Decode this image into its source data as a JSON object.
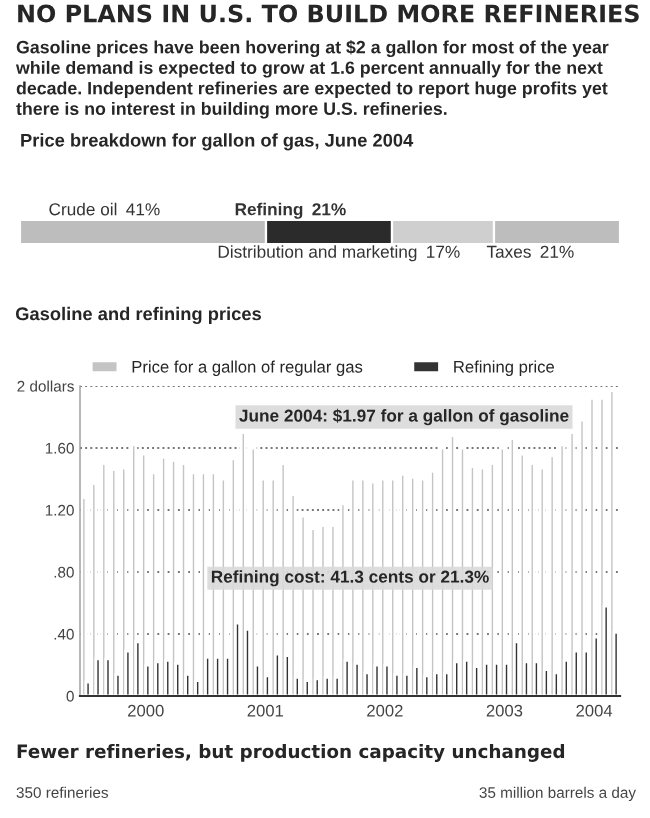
{
  "chart_data": [
    {
      "type": "other",
      "title": "NO PLANS IN U.S. TO BUILD MORE REFINERIES",
      "annotations": [
        "Gasoline prices have been hovering at $2 a gallon for most of the year while demand is expected to grow at 1.6 percent annually for the next decade. Independent refineries are expected to report huge profits yet there is no interest in building more U.S. refineries."
      ]
    },
    {
      "type": "bar",
      "orientation": "horizontal",
      "stacked": true,
      "title": "Price breakdown for gallon of gas, June 2004",
      "categories": [
        null
      ],
      "series": [
        {
          "name": "Crude oil",
          "color": "#bdbdbd",
          "values": [
            41
          ],
          "value_labels": [
            "41%"
          ]
        },
        {
          "name": "Refining",
          "color": "#2b2b2b",
          "values": [
            21
          ],
          "value_labels": [
            "21%"
          ]
        },
        {
          "name": "Distribution and marketing",
          "color": "#cfcfcf",
          "values": [
            17
          ],
          "value_labels": [
            "17%"
          ]
        },
        {
          "name": "Taxes",
          "color": "#bdbdbd",
          "values": [
            21
          ],
          "value_labels": [
            "21%"
          ]
        }
      ]
    },
    {
      "type": "bar",
      "title": "Gasoline and refining prices",
      "categories": [
        null,
        null,
        null,
        null,
        null,
        null,
        "2000",
        null,
        null,
        null,
        null,
        null,
        null,
        null,
        null,
        null,
        null,
        null,
        "2001",
        null,
        null,
        null,
        null,
        null,
        null,
        null,
        null,
        null,
        null,
        null,
        "2002",
        null,
        null,
        null,
        null,
        null,
        null,
        null,
        null,
        null,
        null,
        null,
        "2003",
        null,
        null,
        null,
        null,
        null,
        null,
        null,
        null,
        "2004",
        null,
        null
      ],
      "series": [
        {
          "name": "Price for a gallon of regular gas",
          "color": "#c4c4c4",
          "values": [
            1.28,
            1.37,
            1.5,
            1.46,
            1.47,
            1.62,
            1.56,
            1.44,
            1.54,
            1.52,
            1.5,
            1.44,
            1.44,
            1.44,
            1.4,
            1.53,
            1.7,
            1.6,
            1.4,
            1.4,
            1.5,
            1.3,
            1.16,
            1.08,
            1.1,
            1.1,
            1.24,
            1.4,
            1.4,
            1.38,
            1.4,
            1.4,
            1.43,
            1.41,
            1.4,
            1.45,
            1.6,
            1.68,
            1.6,
            1.48,
            1.47,
            1.5,
            1.6,
            1.66,
            1.56,
            1.5,
            1.47,
            1.55,
            1.62,
            1.7,
            1.78,
            1.92,
            1.92,
            1.97
          ]
        },
        {
          "name": "Refining price",
          "color": "#333333",
          "values": [
            0.09,
            0.24,
            0.24,
            0.14,
            0.29,
            0.35,
            0.2,
            0.22,
            0.23,
            0.21,
            0.14,
            0.1,
            0.25,
            0.25,
            0.25,
            0.47,
            0.43,
            0.2,
            0.13,
            0.27,
            0.26,
            0.12,
            0.1,
            0.11,
            0.12,
            0.12,
            0.23,
            0.21,
            0.15,
            0.2,
            0.2,
            0.14,
            0.14,
            0.19,
            0.13,
            0.15,
            0.15,
            0.22,
            0.23,
            0.19,
            0.21,
            0.21,
            0.21,
            0.35,
            0.22,
            0.22,
            0.17,
            0.15,
            0.23,
            0.29,
            0.29,
            0.38,
            0.58,
            0.41
          ]
        }
      ],
      "ylim": [
        0,
        2.0
      ],
      "yticks": [
        0,
        {
          "value": 0.4,
          "label": ".40"
        },
        {
          "value": 0.8,
          "label": ".80"
        },
        {
          "value": 1.2,
          "label": "1.20"
        },
        {
          "value": 1.6,
          "label": "1.60"
        },
        {
          "value": 2,
          "label": "2 dollars"
        }
      ],
      "grid": "y",
      "legend": "top",
      "annotations": [
        "June 2004: $1.97 for a gallon of gasoline",
        "Refining cost: 41.3 cents or 21.3%"
      ]
    },
    {
      "type": "other",
      "title": "Fewer refineries, but production capacity unchanged",
      "annotations": [
        "350 refineries",
        "35 million barrels a day"
      ]
    }
  ]
}
